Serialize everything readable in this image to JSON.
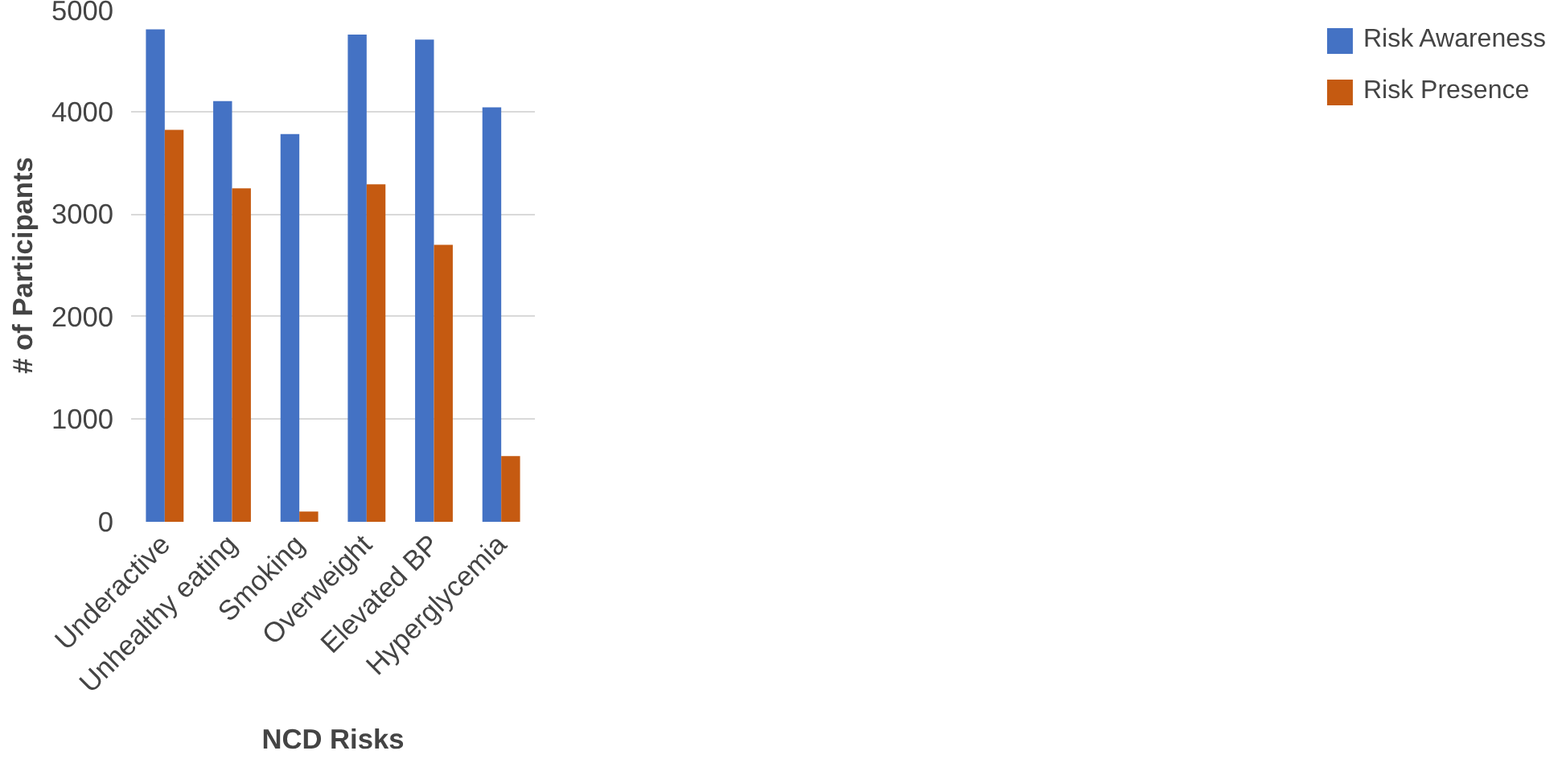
{
  "chart_data": {
    "type": "bar",
    "xlabel": "NCD Risks",
    "ylabel": "# of Participants",
    "categories": [
      "Underactive",
      "Unhealthy eating",
      "Smoking",
      "Overweight",
      "Elevated BP",
      "Hyperglycemia"
    ],
    "series": [
      {
        "name": "Risk Awareness",
        "color": "#4472c4",
        "values": [
          4800,
          4100,
          3780,
          4750,
          4700,
          4040
        ]
      },
      {
        "name": "Risk Presence",
        "color": "#c55a11",
        "values": [
          3820,
          3250,
          100,
          3290,
          2700,
          640
        ]
      }
    ],
    "ylim": [
      0,
      5000
    ],
    "yticks": [
      0,
      1000,
      2000,
      3000,
      4000,
      5000
    ],
    "grid": "y",
    "legend": "right"
  }
}
